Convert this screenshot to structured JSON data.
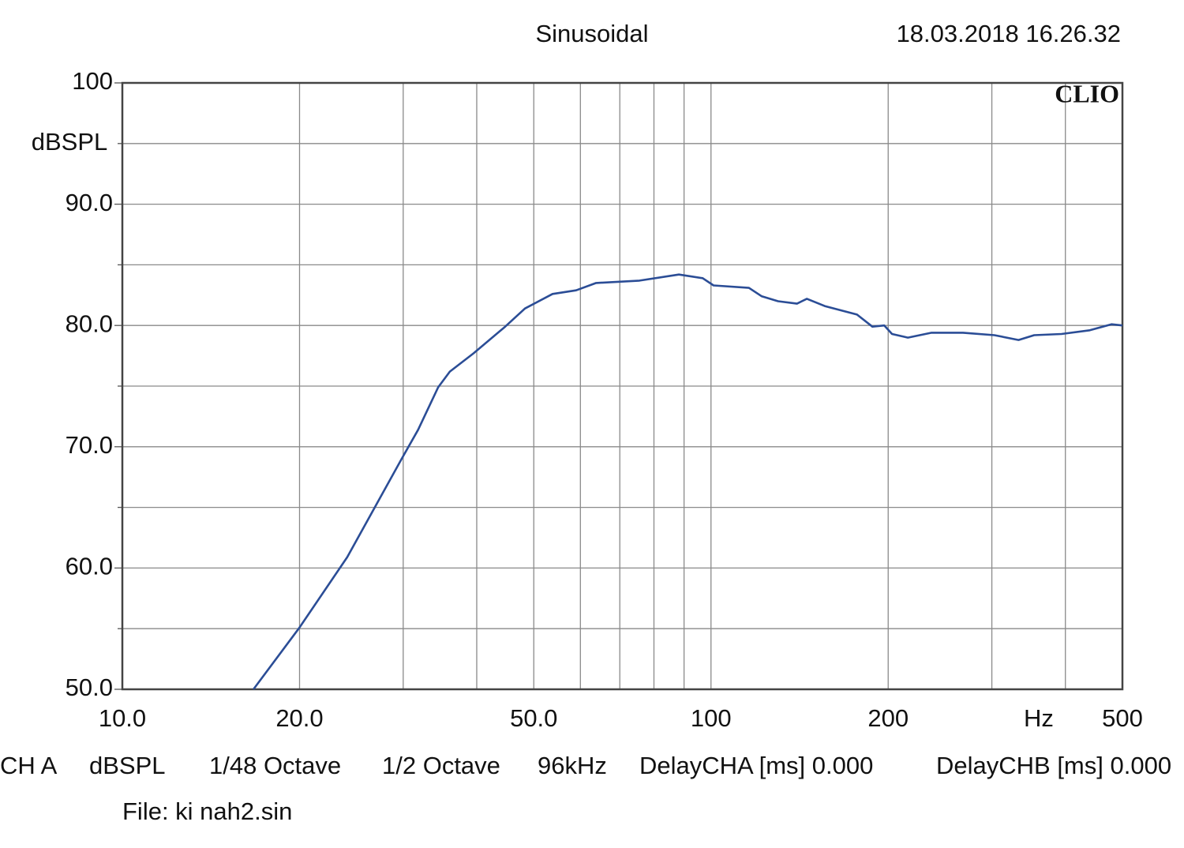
{
  "chart_data": {
    "type": "line",
    "title": "Sinusoidal",
    "timestamp": "18.03.2018 16.26.32",
    "brand": "CLIO",
    "y_label": "dBSPL",
    "x_label": "Hz",
    "x_log": true,
    "grid": true,
    "xlim": [
      10,
      500
    ],
    "ylim": [
      50,
      100
    ],
    "xticks": [
      {
        "value": 10,
        "label": "10.0"
      },
      {
        "value": 20,
        "label": "20.0"
      },
      {
        "value": 50,
        "label": "50.0"
      },
      100,
      200,
      500
    ],
    "x_minor_grid": [
      30,
      40,
      60,
      70,
      80,
      90,
      300,
      400
    ],
    "yticks": [
      {
        "value": 50,
        "label": "50.0"
      },
      {
        "value": 60,
        "label": "60.0"
      },
      {
        "value": 70,
        "label": "70.0"
      },
      {
        "value": 80,
        "label": "80.0"
      },
      {
        "value": 90,
        "label": "90.0"
      },
      100
    ],
    "y_minor_grid": [
      55,
      65,
      75,
      85,
      95
    ],
    "series": [
      {
        "name": "CH A",
        "color": "#2b4d96",
        "x": [
          16.7,
          20.0,
          24.1,
          29.9,
          31.8,
          34.4,
          36.0,
          39.5,
          44.7,
          48.3,
          53.8,
          59.0,
          63.8,
          75.6,
          88.2,
          96.8,
          101,
          116,
          122,
          130,
          140,
          145.5,
          156,
          177,
          188,
          197,
          203,
          216,
          237,
          268,
          303,
          333,
          354,
          394,
          440,
          479,
          500
        ],
        "values": [
          50.0,
          55.1,
          60.9,
          69.1,
          71.4,
          74.9,
          76.2,
          77.7,
          79.9,
          81.4,
          82.6,
          82.9,
          83.5,
          83.7,
          84.2,
          83.9,
          83.3,
          83.1,
          82.4,
          82.0,
          81.8,
          82.2,
          81.6,
          80.9,
          79.9,
          80.0,
          79.3,
          79.0,
          79.4,
          79.4,
          79.2,
          78.8,
          79.2,
          79.3,
          79.6,
          80.1,
          80.0
        ]
      }
    ],
    "footer": [
      "CH A",
      "dBSPL",
      "1/48 Octave",
      "1/2 Octave",
      "96kHz",
      "DelayCHA [ms] 0.000",
      "DelayCHB [ms] 0.000"
    ],
    "file": "File: ki nah2.sin"
  }
}
